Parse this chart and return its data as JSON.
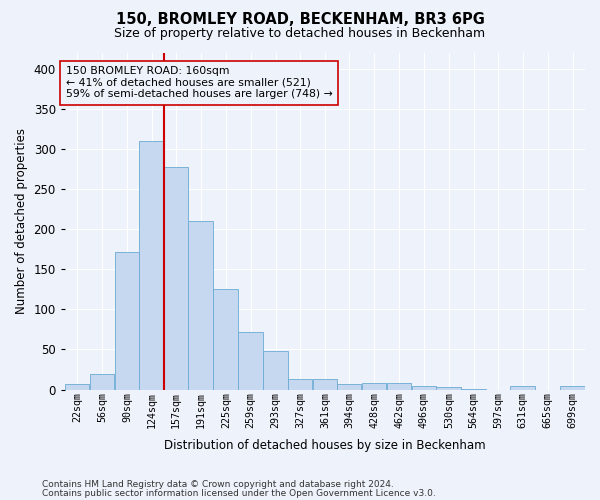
{
  "title1": "150, BROMLEY ROAD, BECKENHAM, BR3 6PG",
  "title2": "Size of property relative to detached houses in Beckenham",
  "xlabel": "Distribution of detached houses by size in Beckenham",
  "ylabel": "Number of detached properties",
  "footnote1": "Contains HM Land Registry data © Crown copyright and database right 2024.",
  "footnote2": "Contains public sector information licensed under the Open Government Licence v3.0.",
  "bar_color": "#c5d8f0",
  "bar_edge_color": "#6aaad4",
  "vline_color": "#cc0000",
  "vline_x": 157,
  "annotation_line1": "150 BROMLEY ROAD: 160sqm",
  "annotation_line2": "← 41% of detached houses are smaller (521)",
  "annotation_line3": "59% of semi-detached houses are larger (748) →",
  "bins": [
    22,
    56,
    90,
    124,
    157,
    191,
    225,
    259,
    293,
    327,
    361,
    394,
    428,
    462,
    496,
    530,
    564,
    597,
    631,
    665,
    699
  ],
  "heights": [
    7,
    20,
    172,
    310,
    277,
    210,
    125,
    72,
    48,
    13,
    13,
    7,
    8,
    8,
    5,
    3,
    1,
    0,
    4,
    0,
    4
  ],
  "ylim": [
    0,
    420
  ],
  "yticks": [
    0,
    50,
    100,
    150,
    200,
    250,
    300,
    350,
    400
  ],
  "background_color": "#eef2fa",
  "grid_color": "#ffffff"
}
